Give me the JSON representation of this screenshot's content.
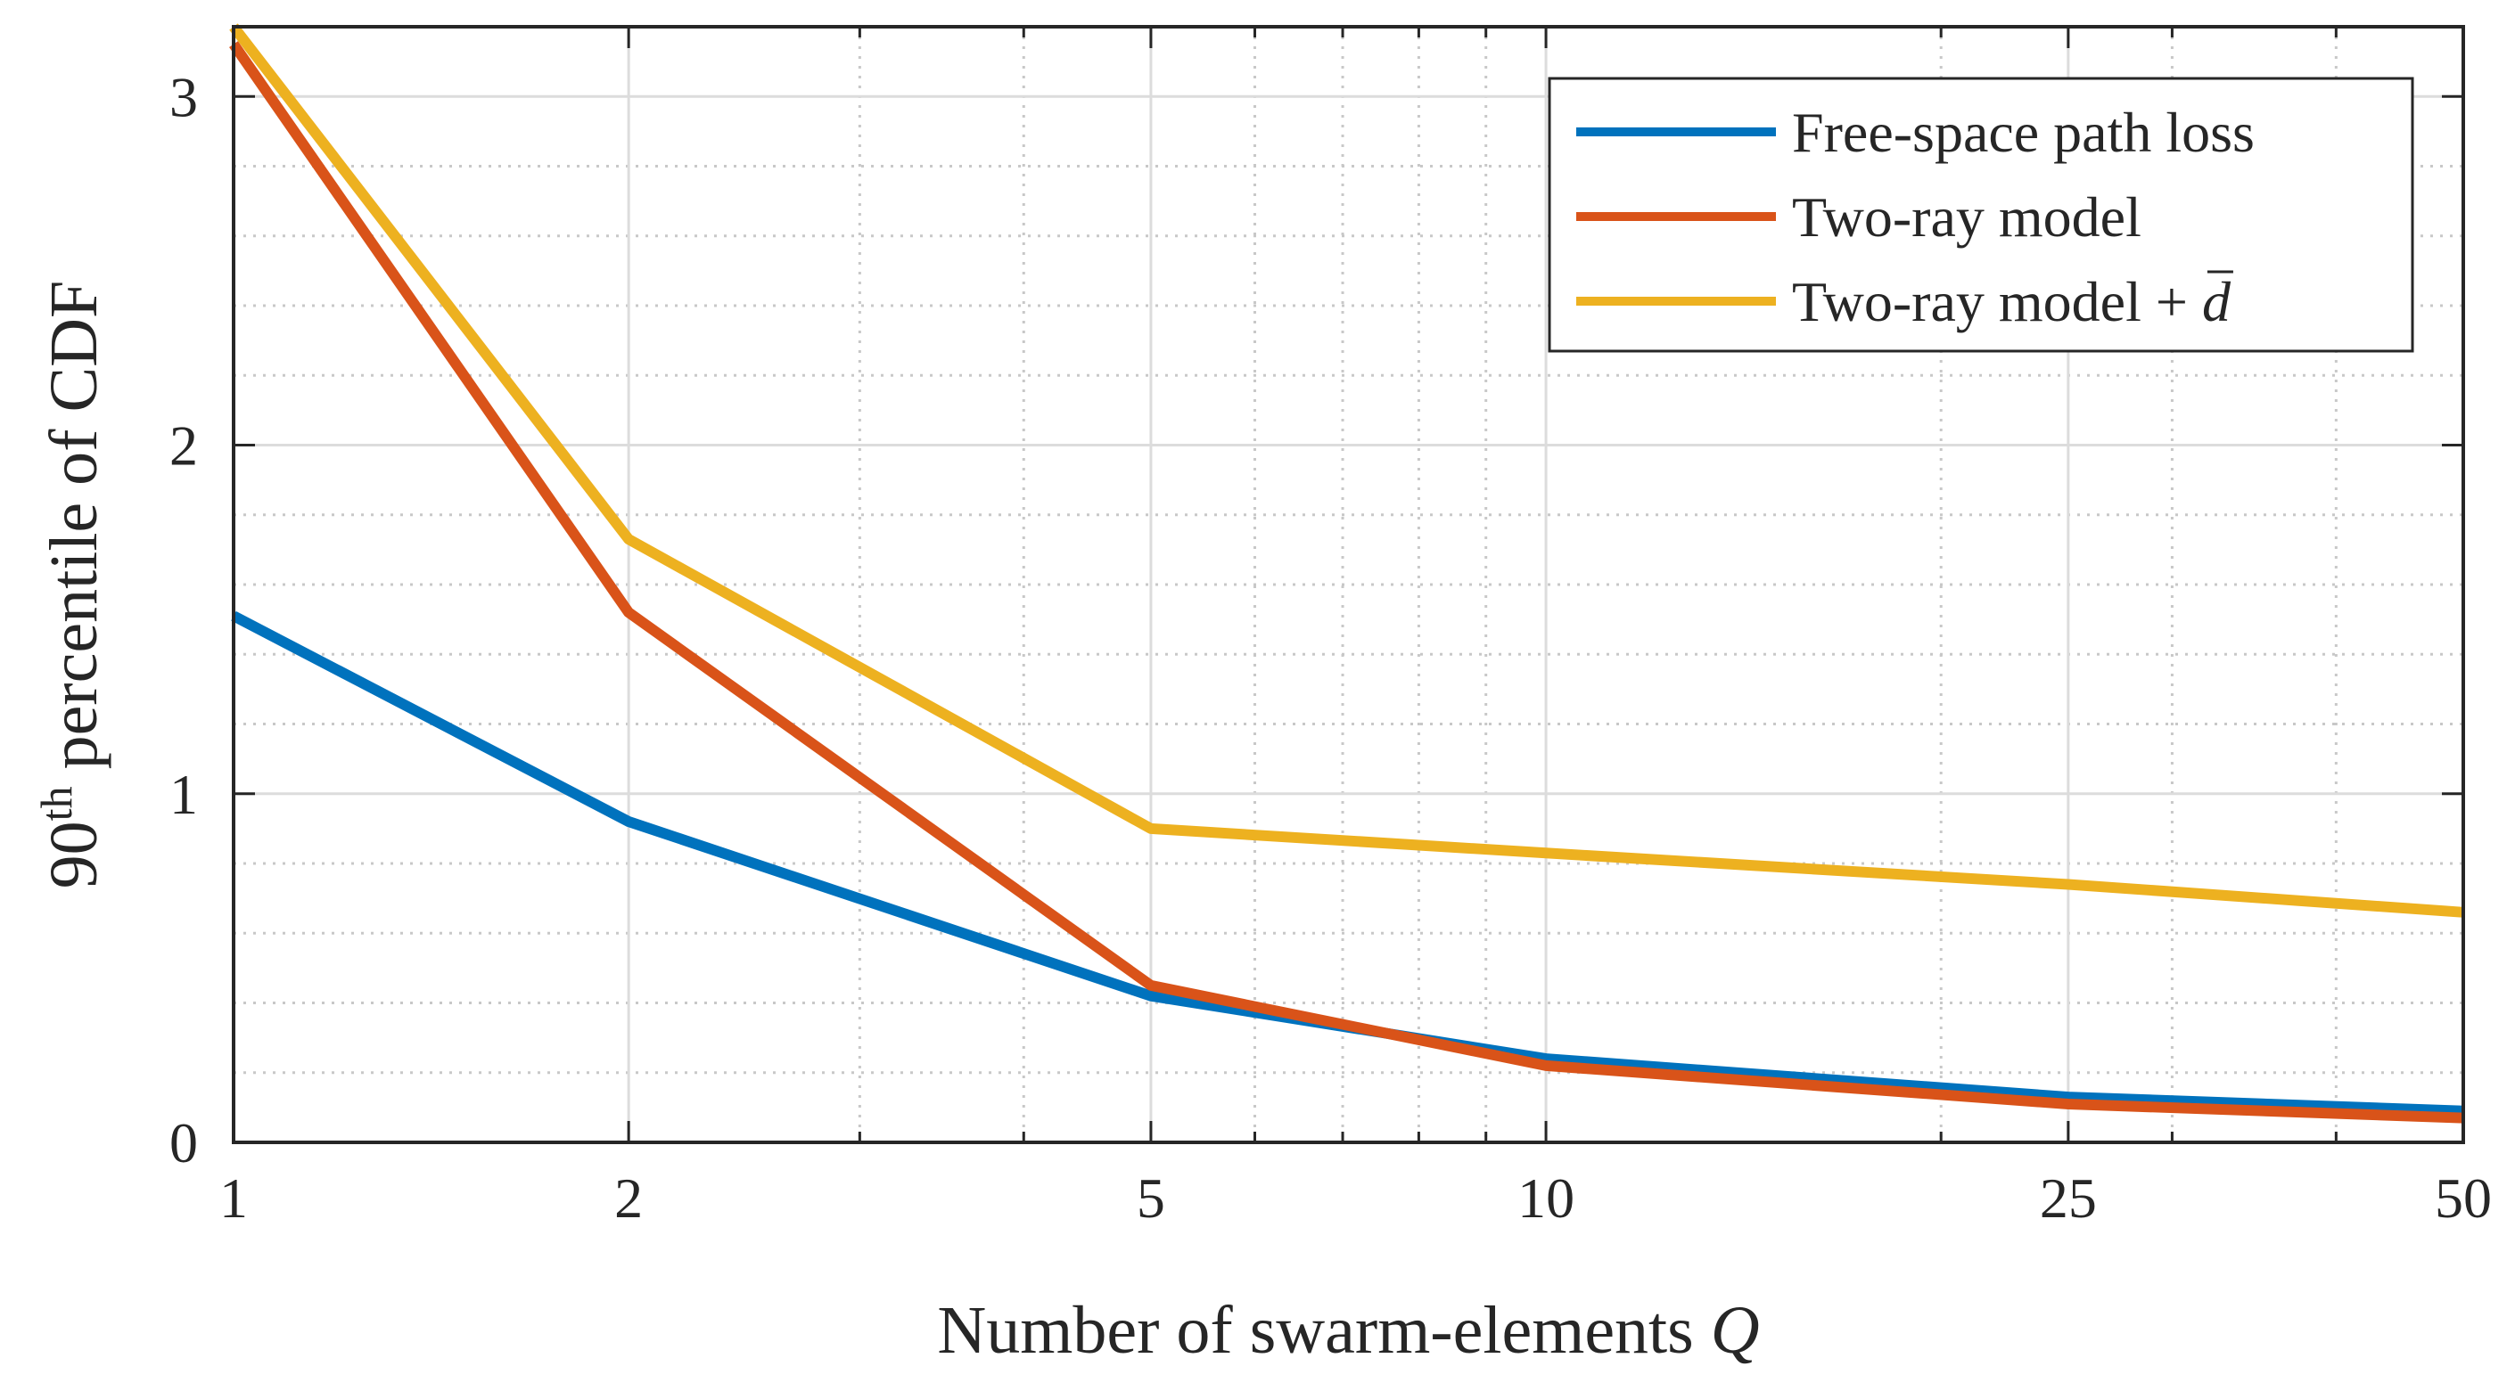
{
  "chart_data": {
    "type": "line",
    "x_scale": "log",
    "x": [
      1,
      2,
      5,
      10,
      25,
      50
    ],
    "xticks": [
      1,
      2,
      5,
      10,
      25,
      50
    ],
    "xtick_labels": [
      "1",
      "2",
      "5",
      "10",
      "25",
      "50"
    ],
    "yticks": [
      0,
      1,
      2,
      3
    ],
    "ytick_labels": [
      "0",
      "1",
      "2",
      "3"
    ],
    "xlim": [
      1,
      50
    ],
    "ylim": [
      0,
      3.2
    ],
    "grid": true,
    "minor_grid": true,
    "xlabel": "Number of swarm-elements",
    "xlabel_symbol": "Q",
    "ylabel_pre": "90",
    "ylabel_sup": "th",
    "ylabel_post": " percentile of CDF",
    "legend_position": "top-right",
    "series": [
      {
        "name": "Free-space path loss",
        "color": "#0072BD",
        "values": [
          1.51,
          0.92,
          0.42,
          0.24,
          0.13,
          0.09
        ]
      },
      {
        "name": "Two-ray model",
        "color": "#D95319",
        "values": [
          3.15,
          1.52,
          0.45,
          0.22,
          0.11,
          0.07
        ]
      },
      {
        "name": "Two-ray model + ",
        "name_symbol": "d",
        "color": "#EDB120",
        "values": [
          3.2,
          1.73,
          0.9,
          0.83,
          0.74,
          0.66
        ]
      }
    ]
  }
}
